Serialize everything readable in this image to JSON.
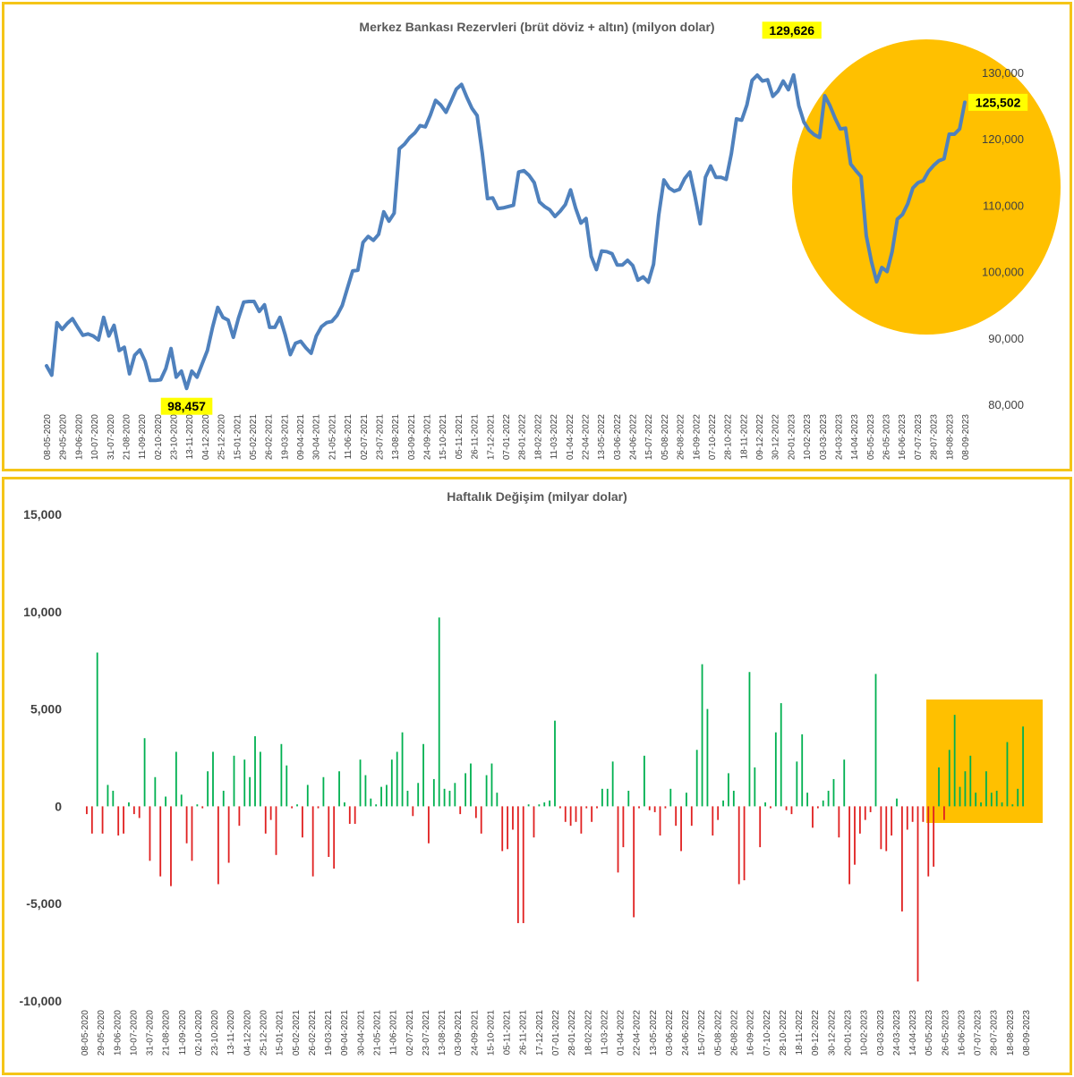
{
  "colors": {
    "frame": "#F5C518",
    "line": "#4F81BD",
    "highlight": "#FFC000",
    "callout": "#FFFF00",
    "bar_up": "#00B050",
    "bar_down": "#E02020",
    "text": "#595959"
  },
  "chart_data": [
    {
      "type": "line",
      "title": "Merkez Bankası Rezervleri (brüt döviz + altın) (milyon dolar)",
      "xlabel": "",
      "ylabel": "",
      "ylim": [
        80000,
        130000
      ],
      "yticks": [
        "80,000",
        "90,000",
        "100,000",
        "110,000",
        "120,000",
        "130,000"
      ],
      "x_tick_labels": [
        "08-05-2020",
        "29-05-2020",
        "19-06-2020",
        "10-07-2020",
        "31-07-2020",
        "21-08-2020",
        "11-09-2020",
        "02-10-2020",
        "23-10-2020",
        "13-11-2020",
        "04-12-2020",
        "25-12-2020",
        "15-01-2021",
        "05-02-2021",
        "26-02-2021",
        "19-03-2021",
        "09-04-2021",
        "30-04-2021",
        "21-05-2021",
        "11-06-2021",
        "02-07-2021",
        "23-07-2021",
        "13-08-2021",
        "03-09-2021",
        "24-09-2021",
        "15-10-2021",
        "05-11-2021",
        "26-11-2021",
        "17-12-2021",
        "07-01-2022",
        "28-01-2022",
        "18-02-2022",
        "11-03-2022",
        "01-04-2022",
        "22-04-2022",
        "13-05-2022",
        "03-06-2022",
        "24-06-2022",
        "15-07-2022",
        "05-08-2022",
        "26-08-2022",
        "16-09-2022",
        "07-10-2022",
        "28-10-2022",
        "18-11-2022",
        "09-12-2022",
        "30-12-2022",
        "20-01-2023",
        "10-02-2023",
        "03-03-2023",
        "24-03-2023",
        "14-04-2023",
        "05-05-2023",
        "26-05-2023",
        "16-06-2023",
        "07-07-2023",
        "28-07-2023",
        "18-08-2023",
        "08-09-2023"
      ],
      "series": [
        {
          "name": "",
          "values": [
            85800,
            84400,
            92300,
            91300,
            92200,
            92900,
            91600,
            90400,
            90600,
            90300,
            89700,
            93100,
            90300,
            91900,
            88100,
            88600,
            84600,
            87400,
            88200,
            86500,
            83600,
            83600,
            83700,
            85400,
            88400,
            84100,
            85000,
            82400,
            85000,
            84100,
            86100,
            88100,
            91600,
            94600,
            93100,
            92700,
            90100,
            93000,
            95400,
            95500,
            95500,
            94000,
            95000,
            91600,
            91600,
            93100,
            90500,
            87500,
            89200,
            89500,
            88500,
            87700,
            90300,
            91700,
            92300,
            92500,
            93400,
            94900,
            97500,
            100100,
            100200,
            104400,
            105300,
            104700,
            105600,
            109000,
            107600,
            108800,
            118500,
            119200,
            120200,
            120900,
            122000,
            121800,
            123600,
            125800,
            125100,
            124000,
            125700,
            127500,
            128200,
            126300,
            124600,
            123500,
            117800,
            111000,
            111100,
            109500,
            109600,
            109800,
            110000,
            115000,
            115200,
            114500,
            113400,
            110500,
            109800,
            109300,
            108300,
            109100,
            110100,
            112300,
            109500,
            107300,
            108000,
            102300,
            100300,
            103100,
            103000,
            102700,
            101000,
            101000,
            101700,
            100900,
            98700,
            99200,
            98400,
            101100,
            108500,
            113800,
            112600,
            112100,
            112400,
            114000,
            115000,
            111300,
            107200,
            114200,
            115900,
            114200,
            114200,
            113900,
            117800,
            123000,
            122800,
            125100,
            128800,
            129600,
            128700,
            128900,
            126400,
            127200,
            128700,
            127400,
            129626,
            125000,
            122500,
            121300,
            120600,
            120200,
            126500,
            125000,
            123100,
            121500,
            121600,
            116200,
            115200,
            114300,
            105400,
            101500,
            98457,
            100600,
            100000,
            103000,
            107900,
            108600,
            110200,
            112600,
            113400,
            113700,
            115100,
            116000,
            116700,
            117000,
            120700,
            120700,
            121500,
            125502
          ],
          "annotations": [
            "129,626",
            "98,457",
            "125,502"
          ]
        }
      ]
    },
    {
      "type": "bar",
      "title": "Haftalık Değişim (milyar dolar)",
      "xlabel": "",
      "ylabel": "",
      "ylim": [
        -10000,
        15000
      ],
      "yticks": [
        "-10,000",
        "-5,000",
        "0",
        "5,000",
        "10,000",
        "15,000"
      ],
      "x_tick_labels": [
        "08-05-2020",
        "29-05-2020",
        "19-06-2020",
        "10-07-2020",
        "31-07-2020",
        "21-08-2020",
        "11-09-2020",
        "02-10-2020",
        "23-10-2020",
        "13-11-2020",
        "04-12-2020",
        "25-12-2020",
        "15-01-2021",
        "05-02-2021",
        "26-02-2021",
        "19-03-2021",
        "09-04-2021",
        "30-04-2021",
        "21-05-2021",
        "11-06-2021",
        "02-07-2021",
        "23-07-2021",
        "13-08-2021",
        "03-09-2021",
        "24-09-2021",
        "15-10-2021",
        "05-11-2021",
        "26-11-2021",
        "17-12-2021",
        "07-01-2022",
        "28-01-2022",
        "18-02-2022",
        "11-03-2022",
        "01-04-2022",
        "22-04-2022",
        "13-05-2022",
        "03-06-2022",
        "24-06-2022",
        "15-07-2022",
        "05-08-2022",
        "26-08-2022",
        "16-09-2022",
        "07-10-2022",
        "28-10-2022",
        "18-11-2022",
        "09-12-2022",
        "30-12-2022",
        "20-01-2023",
        "10-02-2023",
        "03-03-2023",
        "24-03-2023",
        "14-04-2023",
        "05-05-2023",
        "26-05-2023",
        "16-06-2023",
        "07-07-2023",
        "28-07-2023",
        "18-08-2023",
        "08-09-2023"
      ],
      "values": [
        -400,
        -1400,
        7900,
        -1400,
        1100,
        800,
        -1500,
        -1400,
        200,
        -400,
        -600,
        3500,
        -2800,
        1500,
        -3600,
        500,
        -4100,
        2800,
        600,
        -1900,
        -2800,
        100,
        -100,
        1800,
        2800,
        -4000,
        800,
        -2900,
        2600,
        -1000,
        2400,
        1500,
        3600,
        2800,
        -1400,
        -700,
        -2500,
        3200,
        2100,
        -100,
        100,
        -1600,
        1100,
        -3600,
        -100,
        1500,
        -2600,
        -3200,
        1800,
        200,
        -900,
        -900,
        2400,
        1600,
        400,
        100,
        1000,
        1100,
        2400,
        2800,
        3800,
        800,
        -500,
        1200,
        3200,
        -1900,
        1400,
        9700,
        900,
        800,
        1200,
        -400,
        1700,
        2200,
        -600,
        -1400,
        1600,
        2200,
        700,
        -2300,
        -2200,
        -1200,
        -6000,
        -6000,
        100,
        -1600,
        100,
        200,
        300,
        4400,
        -100,
        -800,
        -1000,
        -800,
        -1400,
        -100,
        -800,
        -100,
        900,
        900,
        2300,
        -3400,
        -2100,
        800,
        -5700,
        -100,
        2600,
        -200,
        -300,
        -1500,
        -100,
        900,
        -1000,
        -2300,
        700,
        -1000,
        2900,
        7300,
        5000,
        -1500,
        -700,
        300,
        1700,
        800,
        -4000,
        -3800,
        6900,
        2000,
        -2100,
        200,
        -100,
        3800,
        5300,
        -200,
        -400,
        2300,
        3700,
        700,
        -1100,
        -100,
        300,
        800,
        1400,
        -1600,
        2400,
        -4000,
        -3000,
        -1400,
        -700,
        -300,
        6800,
        -2200,
        -2300,
        -1500,
        400,
        -5400,
        -1200,
        -800,
        -9000,
        -800,
        -3600,
        -3100,
        2000,
        -700,
        2900,
        4700,
        1000,
        1800,
        2600,
        700,
        200,
        1800,
        700,
        800,
        200,
        3300,
        100,
        900,
        4100
      ],
      "legend": "none"
    }
  ]
}
